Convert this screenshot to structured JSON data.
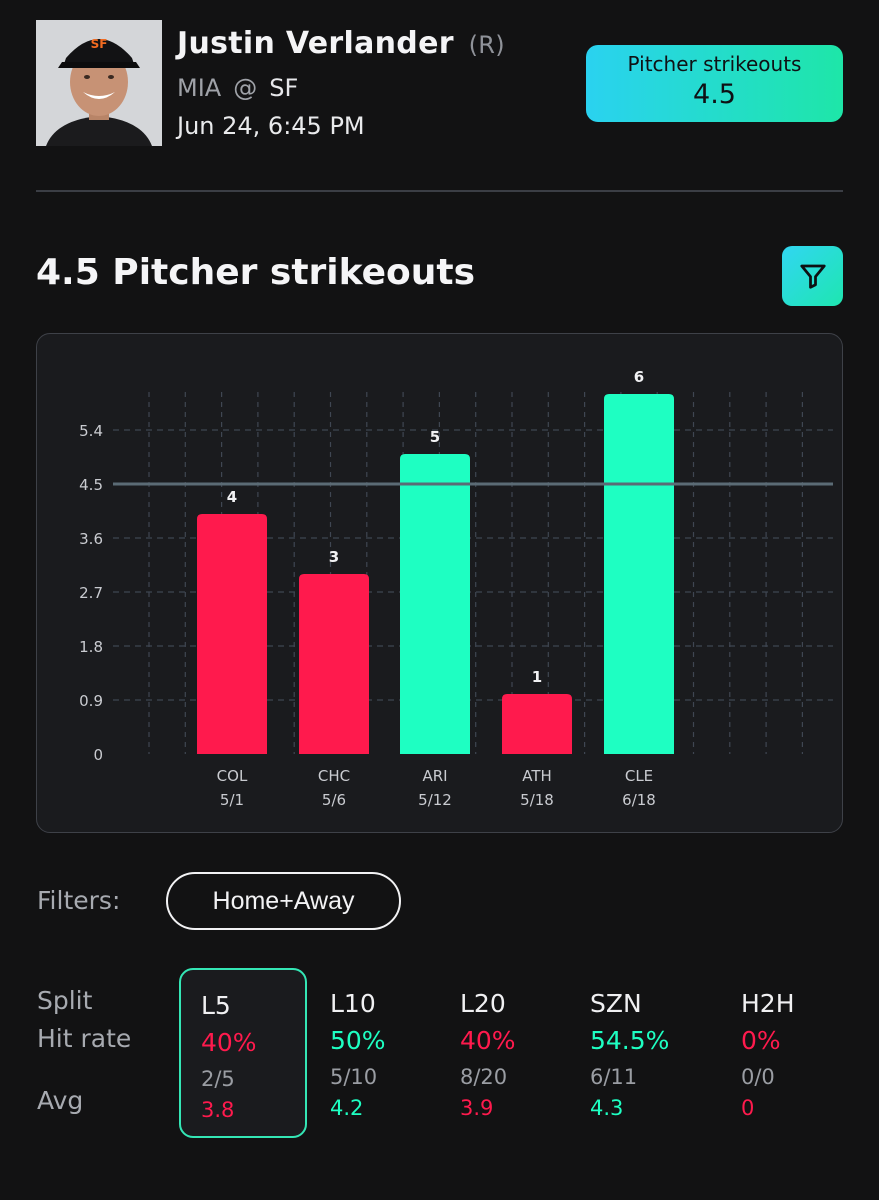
{
  "player": {
    "name": "Justin Verlander",
    "hand": "(R)",
    "away_team": "MIA",
    "at": "@",
    "home_team": "SF",
    "game_time": "Jun 24, 6:45 PM",
    "avatar_icon": "player-headshot"
  },
  "prop": {
    "label": "Pitcher strikeouts",
    "line": "4.5"
  },
  "section": {
    "title": "4.5 Pitcher strikeouts",
    "filter_icon": "funnel-icon"
  },
  "colors": {
    "hit": "#1effc2",
    "miss": "#ff1a4d",
    "line": "#5b6b75",
    "badge_gradient": [
      "#2ad2f0",
      "#1ee6a8"
    ]
  },
  "chart_data": {
    "type": "bar",
    "categories": [
      "COL",
      "CHC",
      "ARI",
      "ATH",
      "CLE"
    ],
    "dates": [
      "5/1",
      "5/6",
      "5/12",
      "5/18",
      "6/18"
    ],
    "values": [
      4,
      3,
      5,
      1,
      6
    ],
    "value_labels": [
      "4",
      "3",
      "5",
      "1",
      "6"
    ],
    "threshold": 4.5,
    "yticks": [
      "0",
      "0.9",
      "1.8",
      "2.7",
      "3.6",
      "4.5",
      "5.4"
    ],
    "ylim": [
      0,
      6
    ],
    "grid": true
  },
  "filters": {
    "label": "Filters:",
    "chip": "Home+Away"
  },
  "splits": {
    "row_labels": {
      "split": "Split",
      "hit_rate": "Hit rate",
      "avg": "Avg"
    },
    "columns": [
      {
        "name": "L5",
        "hit_rate": "40%",
        "count": "2/5",
        "avg": "3.8",
        "status": "miss",
        "selected": true
      },
      {
        "name": "L10",
        "hit_rate": "50%",
        "count": "5/10",
        "avg": "4.2",
        "status": "hit",
        "selected": false
      },
      {
        "name": "L20",
        "hit_rate": "40%",
        "count": "8/20",
        "avg": "3.9",
        "status": "miss",
        "selected": false
      },
      {
        "name": "SZN",
        "hit_rate": "54.5%",
        "count": "6/11",
        "avg": "4.3",
        "status": "hit",
        "selected": false
      },
      {
        "name": "H2H",
        "hit_rate": "0%",
        "count": "0/0",
        "avg": "0",
        "status": "miss",
        "selected": false
      }
    ]
  }
}
